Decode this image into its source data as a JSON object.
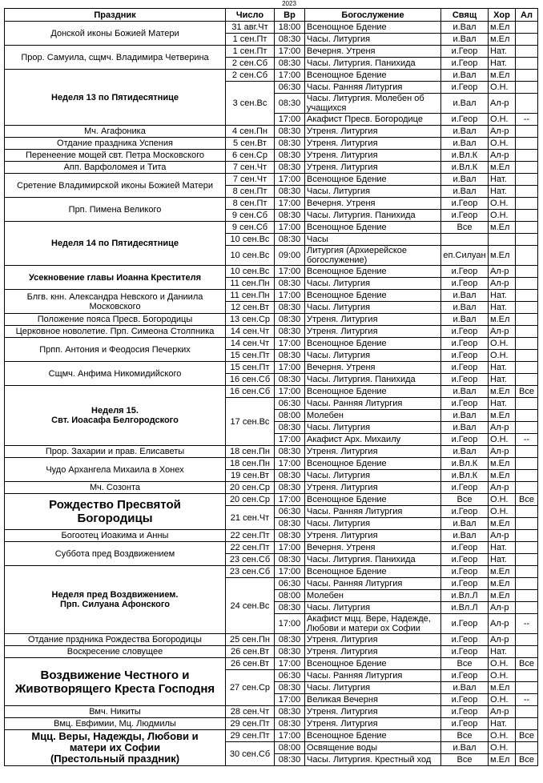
{
  "year": "2023",
  "columns": [
    "Праздник",
    "Число",
    "Вр",
    "Богослужение",
    "Свящ",
    "Хор",
    "Ал"
  ],
  "groups": [
    {
      "feast": "Донской иконы Божией Матери",
      "dates": [
        {
          "date": "31 авг.Чт",
          "services": [
            [
              "18:00",
              "Всенощное Бдение",
              "и.Вал",
              "м.Ел"
            ]
          ]
        },
        {
          "date": "1 сен.Пт",
          "services": [
            [
              "08:30",
              "Часы. Литургия",
              "и.Вал",
              "м.Ел"
            ]
          ]
        }
      ]
    },
    {
      "feast": "Прор. Самуила, сщмч. Владимира Четверина",
      "dates": [
        {
          "date": "1 сен.Пт",
          "services": [
            [
              "17:00",
              "Вечерня. Утреня",
              "и.Геор",
              "Нат."
            ]
          ]
        },
        {
          "date": "2 сен.Сб",
          "services": [
            [
              "08:30",
              "Часы. Литургия. Панихида",
              "и.Геор",
              "Нат."
            ]
          ]
        }
      ]
    },
    {
      "feast": "Неделя 13 по Пятидесятнице",
      "emphasis": "bold",
      "dates": [
        {
          "date": "2 сен.Сб",
          "services": [
            [
              "17:00",
              "Всенощное Бдение",
              "и.Вал",
              "м.Ел"
            ]
          ]
        },
        {
          "date": "3 сен.Вс",
          "services": [
            [
              "06:30",
              "Часы. Ранняя Литургия",
              "и.Геор",
              "О.Н."
            ],
            [
              "08:30",
              "Часы. Литургия. Молебен об учащихся",
              "и.Вал",
              "Ал-р"
            ],
            [
              "17:00",
              "Акафист Пресв. Богородице",
              "и.Геор",
              "О.Н.",
              "--"
            ]
          ]
        }
      ]
    },
    {
      "feast": "Мч. Агафоника",
      "dates": [
        {
          "date": "4 сен.Пн",
          "services": [
            [
              "08:30",
              "Утреня. Литургия",
              "и.Вал",
              "Ал-р"
            ]
          ]
        }
      ]
    },
    {
      "feast": "Отдание праздника Успения",
      "dates": [
        {
          "date": "5 сен.Вт",
          "services": [
            [
              "08:30",
              "Утреня. Литургия",
              "и.Вал",
              "О.Н."
            ]
          ]
        }
      ]
    },
    {
      "feast": "Перенеение мощей свт. Петра Московского",
      "dates": [
        {
          "date": "6 сен.Ср",
          "services": [
            [
              "08:30",
              "Утреня. Литургия",
              "и.Вл.К",
              "Ал-р"
            ]
          ]
        }
      ]
    },
    {
      "feast": "Апп. Варфоломея и Тита",
      "dates": [
        {
          "date": "7 сен.Чт",
          "services": [
            [
              "08:30",
              "Утреня. Литургия",
              "и.Вл.К",
              "м.Ел"
            ]
          ]
        }
      ]
    },
    {
      "feast": "Сретение Владимирской иконы Божией Матери",
      "dates": [
        {
          "date": "7 сен.Чт",
          "services": [
            [
              "17:00",
              "Всенощное Бдение",
              "и.Вал",
              "Нат."
            ]
          ]
        },
        {
          "date": "8 сен.Пт",
          "services": [
            [
              "08:30",
              "Часы. Литургия",
              "и.Вал",
              "Нат."
            ]
          ]
        }
      ]
    },
    {
      "feast": "Прп. Пимена Великого",
      "dates": [
        {
          "date": "8 сен.Пт",
          "services": [
            [
              "17:00",
              "Вечерня. Утреня",
              "и.Геор",
              "О.Н."
            ]
          ]
        },
        {
          "date": "9 сен.Сб",
          "services": [
            [
              "08:30",
              "Часы. Литургия. Панихида",
              "и.Геор",
              "О.Н."
            ]
          ]
        }
      ]
    },
    {
      "feast": "Неделя 14 по Пятидесятнице",
      "emphasis": "bold",
      "dates": [
        {
          "date": "9 сен.Сб",
          "services": [
            [
              "17:00",
              "Всенощное Бдение",
              "Все",
              "м.Ел"
            ]
          ]
        },
        {
          "date": "10 сен.Вс",
          "services": [
            [
              "08:30",
              "Часы"
            ]
          ]
        },
        {
          "date": "10 сен.Вс",
          "services": [
            [
              "09:00",
              "Литургия (Архиерейское богослужение)",
              "еп.Силуан",
              "м.Ел"
            ]
          ]
        }
      ]
    },
    {
      "feast": "Усекновение главы Иоанна Крестителя",
      "emphasis": "bold",
      "dates": [
        {
          "date": "10 сен.Вс",
          "services": [
            [
              "17:00",
              "Всенощное Бдение",
              "и.Геор",
              "Ал-р"
            ]
          ]
        },
        {
          "date": "11 сен.Пн",
          "services": [
            [
              "08:30",
              "Часы. Литургия",
              "и.Геор",
              "Ал-р"
            ]
          ]
        }
      ]
    },
    {
      "feast": "Блгв. кнн. Александра Невского и Даниила Московского",
      "dates": [
        {
          "date": "11 сен.Пн",
          "services": [
            [
              "17:00",
              "Всенощное Бдение",
              "и.Вал",
              "Нат."
            ]
          ]
        },
        {
          "date": "12 сен.Вт",
          "services": [
            [
              "08:30",
              "Часы. Литургия",
              "и.Вал",
              "Нат."
            ]
          ]
        }
      ]
    },
    {
      "feast": "Положение пояса Пресв. Богородицы",
      "dates": [
        {
          "date": "13 сен.Ср",
          "services": [
            [
              "08:30",
              "Утреня. Литургия",
              "и.Вал",
              "м.Ел"
            ]
          ]
        }
      ]
    },
    {
      "feast": "Церковное новолетие.  Прп. Симеона Столпника",
      "dates": [
        {
          "date": "14 сен.Чт",
          "services": [
            [
              "08:30",
              "Утреня. Литургия",
              "и.Геор",
              "Ал-р"
            ]
          ]
        }
      ]
    },
    {
      "feast": "Прпп. Антония и Феодосия Печерких",
      "dates": [
        {
          "date": "14 сен.Чт",
          "services": [
            [
              "17:00",
              "Всенощное Бдение",
              "и.Геор",
              "О.Н."
            ]
          ]
        },
        {
          "date": "15 сен.Пт",
          "services": [
            [
              "08:30",
              "Часы. Литургия",
              "и.Геор",
              "О.Н."
            ]
          ]
        }
      ]
    },
    {
      "feast": "Сщмч. Анфима Никомидийского",
      "dates": [
        {
          "date": "15 сен.Пт",
          "services": [
            [
              "17:00",
              "Вечерня. Утреня",
              "и.Геор",
              "Нат."
            ]
          ]
        },
        {
          "date": "16 сен.Сб",
          "services": [
            [
              "08:30",
              "Часы. Литургия. Панихида",
              "и.Геор",
              "Нат."
            ]
          ]
        }
      ]
    },
    {
      "feast": "Неделя 15.\nСвт. Иоасафа Белгородского",
      "emphasis": "bold",
      "dates": [
        {
          "date": "16 сен.Сб",
          "services": [
            [
              "17:00",
              "Всенощное Бдение",
              "и.Вал",
              "м.Ел",
              "Все"
            ]
          ]
        },
        {
          "date": "17 сен.Вс",
          "services": [
            [
              "06:30",
              "Часы. Ранняя Литургия",
              "и.Геор",
              "Нат."
            ],
            [
              "08:00",
              "Молебен",
              "и.Вал",
              "м.Ел"
            ],
            [
              "08:30",
              "Часы. Литургия",
              "и.Вал",
              "Ал-р"
            ],
            [
              "17:00",
              "Акафист Арх. Михаилу",
              "и.Геор",
              "О.Н.",
              "--"
            ]
          ]
        }
      ]
    },
    {
      "feast": "Прор. Захарии и прав. Елисаветы",
      "dates": [
        {
          "date": "18 сен.Пн",
          "services": [
            [
              "08:30",
              "Утреня. Литургия",
              "и.Вал",
              "Ал-р"
            ]
          ]
        }
      ]
    },
    {
      "feast": "Чудо Архангела Михаила в Хонех",
      "dates": [
        {
          "date": "18 сен.Пн",
          "services": [
            [
              "17:00",
              "Всенощное Бдение",
              "и.Вл.К",
              "м.Ел"
            ]
          ]
        },
        {
          "date": "19 сен.Вт",
          "services": [
            [
              "08:30",
              "Часы. Литургия",
              "и.Вл.К",
              "м.Ел"
            ]
          ]
        }
      ]
    },
    {
      "feast": "Мч. Созонта",
      "dates": [
        {
          "date": "20 сен.Ср",
          "services": [
            [
              "08:30",
              "Утреня. Литургия",
              "и.Геор",
              "Ал-р"
            ]
          ]
        }
      ]
    },
    {
      "feast": "Рождество Пресвятой\nБогородицы",
      "emphasis": "large",
      "dates": [
        {
          "date": "20 сен.Ср",
          "services": [
            [
              "17:00",
              "Всенощное Бдение",
              "Все",
              "О.Н.",
              "Все"
            ]
          ]
        },
        {
          "date": "21 сен.Чт",
          "services": [
            [
              "06:30",
              "Часы. Ранняя Литургия",
              "и.Геор",
              "О.Н."
            ],
            [
              "08:30",
              "Часы. Литургия",
              "и.Вал",
              "м.Ел"
            ]
          ]
        }
      ]
    },
    {
      "feast": "Богоотец Иоакима и Анны",
      "dates": [
        {
          "date": "22 сен.Пт",
          "services": [
            [
              "08:30",
              "Утреня. Литургия",
              "и.Вал",
              "Ал-р"
            ]
          ]
        }
      ]
    },
    {
      "feast": "Суббота пред Воздвижением",
      "dates": [
        {
          "date": "22 сен.Пт",
          "services": [
            [
              "17:00",
              "Вечерня. Утреня",
              "и.Геор",
              "Нат."
            ]
          ]
        },
        {
          "date": "23 сен.Сб",
          "services": [
            [
              "08:30",
              "Часы. Литургия. Панихида",
              "и.Геор",
              "Нат."
            ]
          ]
        }
      ]
    },
    {
      "feast": "Неделя пред Воздвижением.\nПрп. Силуана Афонского",
      "emphasis": "bold",
      "dates": [
        {
          "date": "23 сен.Сб",
          "services": [
            [
              "17:00",
              "Всенощное Бдение",
              "и.Геор",
              "м.Ел"
            ]
          ]
        },
        {
          "date": "24 сен.Вс",
          "services": [
            [
              "06:30",
              "Часы. Ранняя Литургия",
              "и.Геор",
              "м.Ел"
            ],
            [
              "08:00",
              "Молебен",
              "и.Вл.Л",
              "м.Ел"
            ],
            [
              "08:30",
              "Часы. Литургия",
              "и.Вл.Л",
              "Ал-р"
            ],
            [
              "17:00",
              "Акафист мцц. Вере, Надежде, Любови и матери ох Софии",
              "и.Геор",
              "Ал-р",
              "--"
            ]
          ]
        }
      ]
    },
    {
      "feast": "Отдание прздника Рождества Богородицы",
      "dates": [
        {
          "date": "25 сен.Пн",
          "services": [
            [
              "08:30",
              "Утреня. Литургия",
              "и.Геор",
              "Ал-р"
            ]
          ]
        }
      ]
    },
    {
      "feast": "Воскресение словущее",
      "dates": [
        {
          "date": "26 сен.Вт",
          "services": [
            [
              "08:30",
              "Утреня. Литургия",
              "и.Геор",
              "Нат."
            ]
          ]
        }
      ]
    },
    {
      "feast": "Воздвижение Честного и\nЖивотворящего Креста Господня",
      "emphasis": "large",
      "dates": [
        {
          "date": "26 сен.Вт",
          "services": [
            [
              "17:00",
              "Всенощное Бдение",
              "Все",
              "О.Н.",
              "Все"
            ]
          ]
        },
        {
          "date": "27 сен.Ср",
          "services": [
            [
              "06:30",
              "Часы. Ранняя Литургия",
              "и.Геор",
              "О.Н."
            ],
            [
              "08:30",
              "Часы. Литургия",
              "и.Вал",
              "м.Ел"
            ],
            [
              "17:00",
              "Великая Вечерня",
              "и.Геор",
              "О.Н.",
              "--"
            ]
          ]
        }
      ]
    },
    {
      "feast": "Вмч. Никиты",
      "dates": [
        {
          "date": "28 сен.Чт",
          "services": [
            [
              "08:30",
              "Утреня. Литургия",
              "и.Геор",
              "Ал-р"
            ]
          ]
        }
      ]
    },
    {
      "feast": "Вмц. Евфимии, Мц. Людмилы",
      "dates": [
        {
          "date": "29 сен.Пт",
          "services": [
            [
              "08:30",
              "Утреня. Литургия",
              "и.Геор",
              "Нат."
            ]
          ]
        }
      ]
    },
    {
      "feast": "Мцц. Веры, Надежды, Любови и\nматери их Софии\n(Престольный праздник)",
      "emphasis": "semi",
      "dates": [
        {
          "date": "29 сен.Пт",
          "services": [
            [
              "17:00",
              "Всенощное Бдение",
              "Все",
              "О.Н.",
              "Все"
            ]
          ]
        },
        {
          "date": "30 сен.Сб",
          "services": [
            [
              "08:00",
              "Освящение воды",
              "и.Вал",
              "О.Н."
            ],
            [
              "08:30",
              "Часы. Литургия. Крестный ход",
              "Все",
              "м.Ел",
              "Все"
            ]
          ]
        }
      ]
    }
  ]
}
